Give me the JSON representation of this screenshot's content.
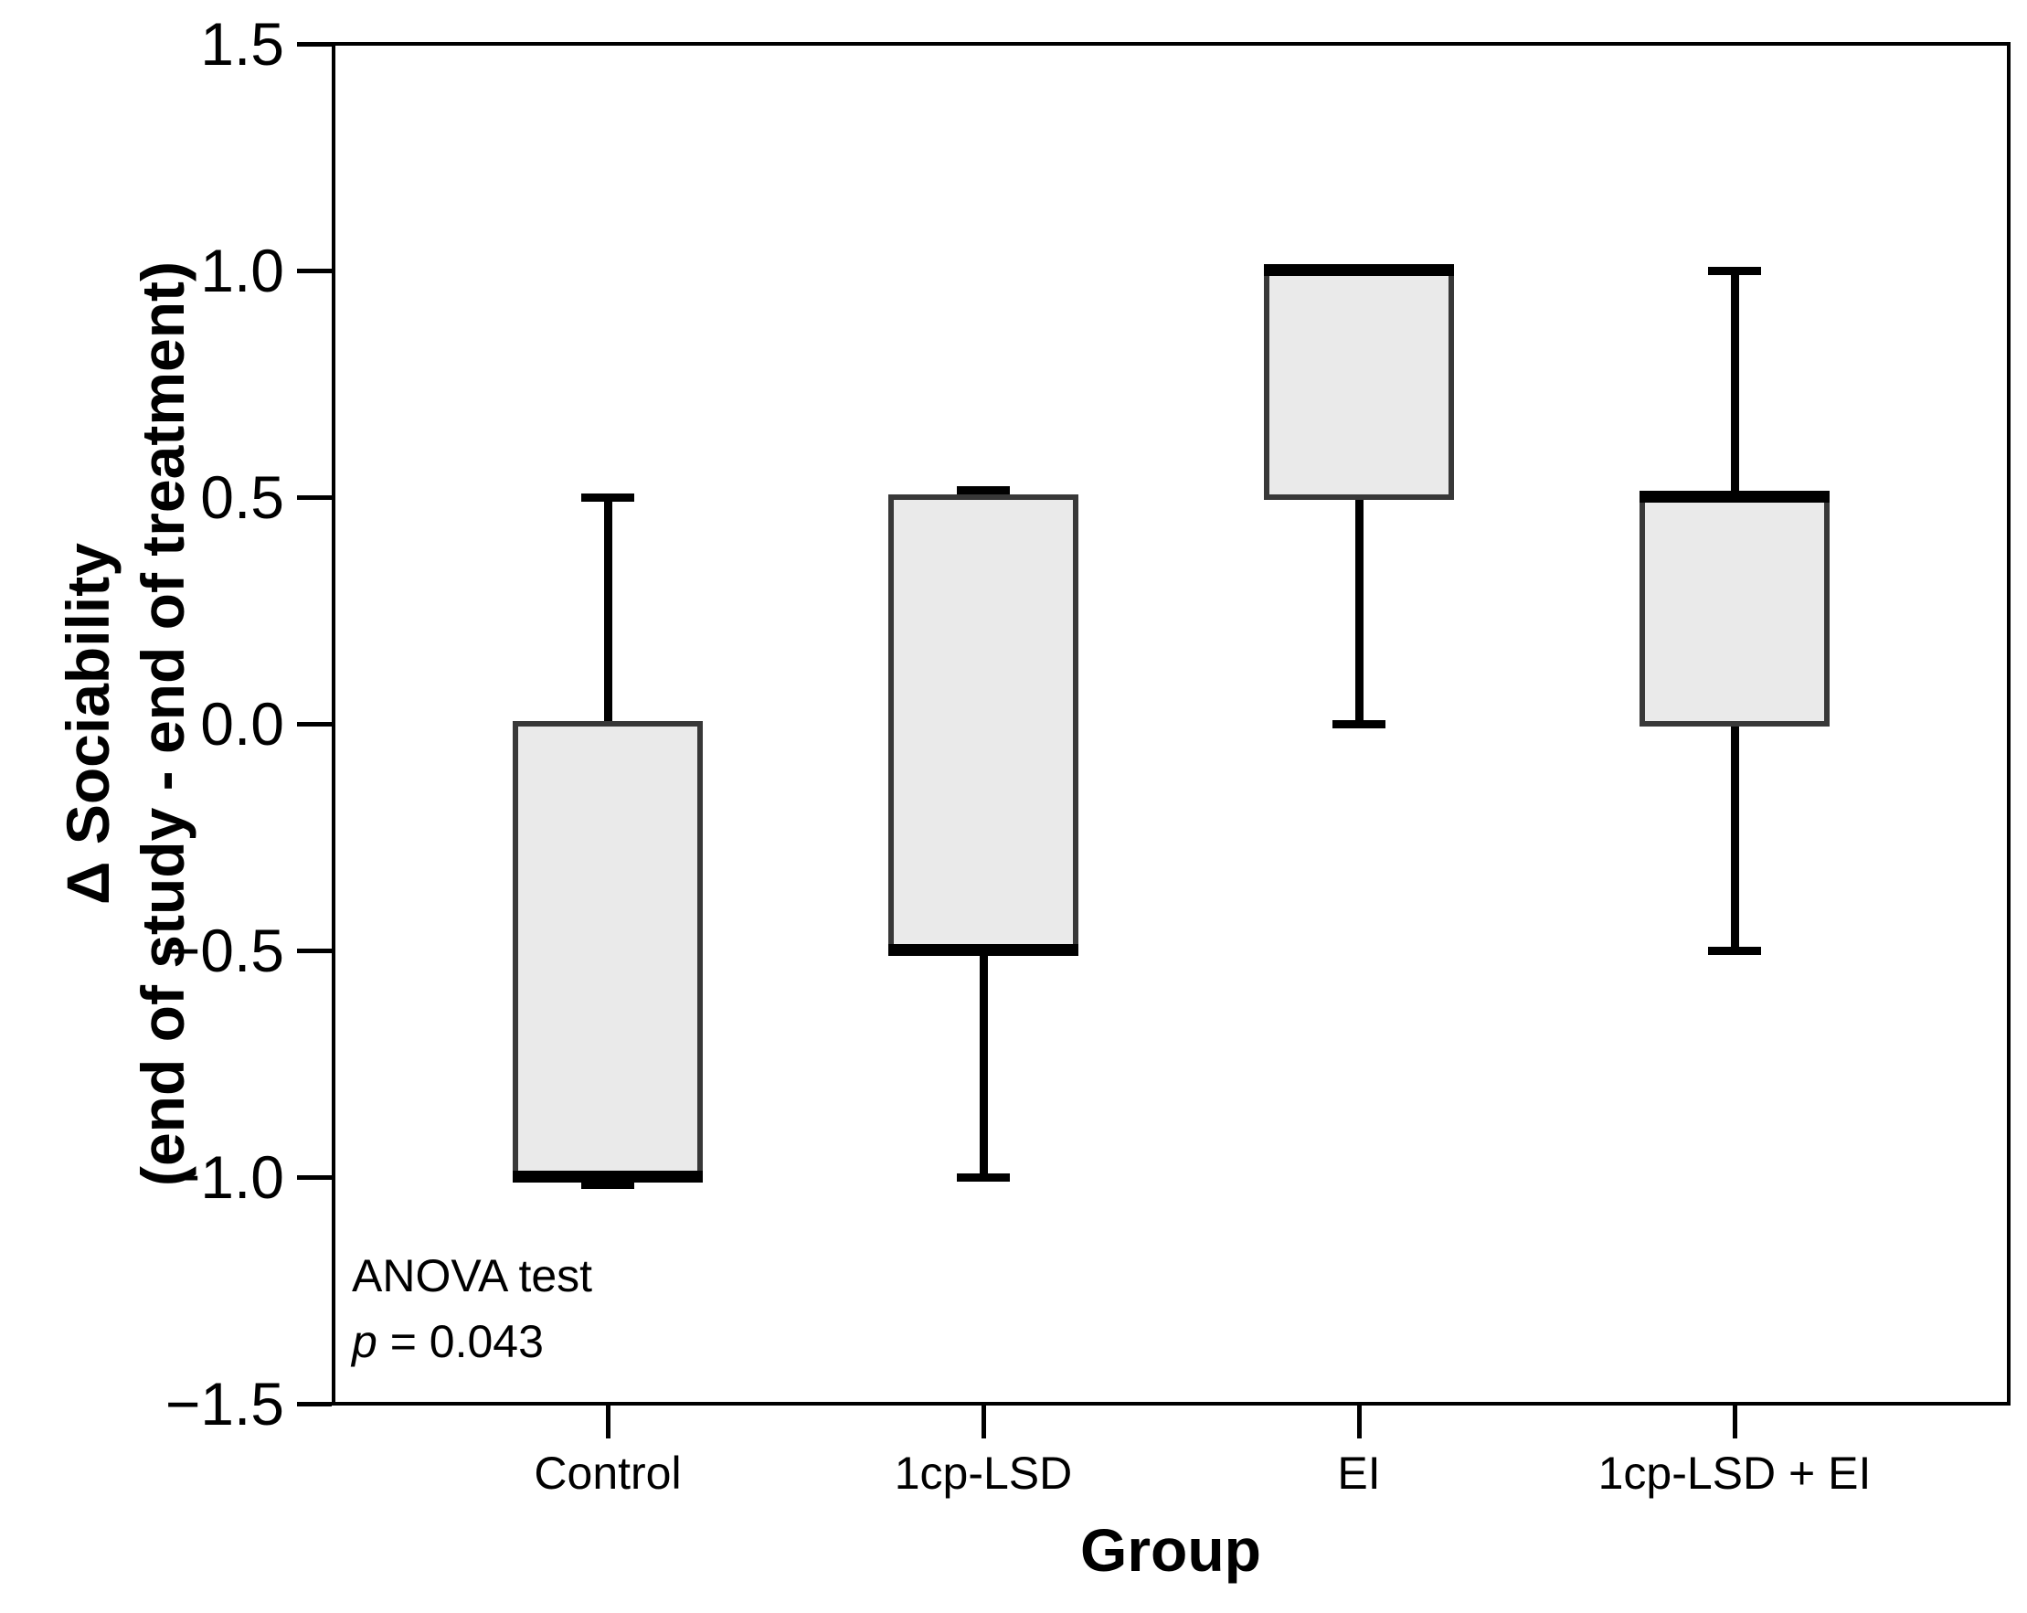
{
  "chart_data": {
    "type": "boxplot",
    "title": "",
    "xlabel": "Group",
    "ylabel_lines": [
      "Δ Sociability",
      "(end of study - end of treatment)"
    ],
    "ylim": [
      -1.5,
      1.5
    ],
    "y_ticks": [
      1.5,
      1.0,
      0.5,
      0.0,
      -0.5,
      -1.0,
      -1.5
    ],
    "y_tick_labels": [
      "1.5",
      "1.0",
      "0.5",
      "0.0",
      "−0.5",
      "−1.0",
      "−1.5"
    ],
    "categories": [
      "Control",
      "1cp-LSD",
      "EI",
      "1cp-LSD + EI"
    ],
    "series": [
      {
        "group": "Control",
        "q1": -1.0,
        "q3": 0.0,
        "median": -1.0,
        "whisker_low": -1.0,
        "whisker_high": 0.5
      },
      {
        "group": "1cp-LSD",
        "q1": -0.5,
        "q3": 0.5,
        "median": -0.5,
        "whisker_low": -1.0,
        "whisker_high": 0.5
      },
      {
        "group": "EI",
        "q1": 0.5,
        "q3": 1.0,
        "median": 1.0,
        "whisker_low": 0.0,
        "whisker_high": null
      },
      {
        "group": "1cp-LSD + EI",
        "q1": 0.0,
        "q3": 0.5,
        "median": 0.5,
        "whisker_low": -0.5,
        "whisker_high": 1.0
      }
    ],
    "annotation": {
      "line1": "ANOVA test",
      "p_symbol": "p",
      "p_rest": " = 0.043"
    },
    "colors": {
      "background": "#ffffff",
      "box_fill": "#eaeaea",
      "box_border": "#383838",
      "line": "#000000"
    },
    "grid": false,
    "legend": null
  }
}
